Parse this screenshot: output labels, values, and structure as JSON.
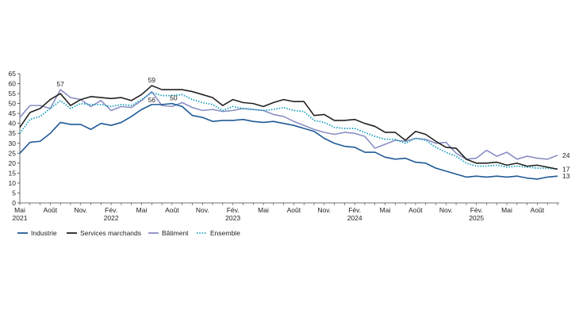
{
  "chart_data": {
    "type": "line",
    "title": "",
    "xlabel": "",
    "ylabel": "",
    "ylim": [
      0,
      65
    ],
    "yticks": [
      0,
      5,
      10,
      15,
      20,
      25,
      30,
      35,
      40,
      45,
      50,
      55,
      60,
      65
    ],
    "legend_position": "bottom-left",
    "x_start": "Mai 2021",
    "x_tick_labels": [
      {
        "index": 0,
        "label": "Mai",
        "year": "2021"
      },
      {
        "index": 3,
        "label": "Août",
        "year": ""
      },
      {
        "index": 6,
        "label": "Nov.",
        "year": ""
      },
      {
        "index": 9,
        "label": "Fév.",
        "year": "2022"
      },
      {
        "index": 12,
        "label": "Mai",
        "year": ""
      },
      {
        "index": 15,
        "label": "Août",
        "year": ""
      },
      {
        "index": 18,
        "label": "Nov.",
        "year": ""
      },
      {
        "index": 21,
        "label": "Fév.",
        "year": "2023"
      },
      {
        "index": 24,
        "label": "Mai",
        "year": ""
      },
      {
        "index": 27,
        "label": "Août",
        "year": ""
      },
      {
        "index": 30,
        "label": "Nov.",
        "year": ""
      },
      {
        "index": 33,
        "label": "Fév.",
        "year": "2024"
      },
      {
        "index": 36,
        "label": "Mai",
        "year": ""
      },
      {
        "index": 39,
        "label": "Août",
        "year": ""
      },
      {
        "index": 42,
        "label": "Nov.",
        "year": ""
      },
      {
        "index": 45,
        "label": "Fév.",
        "year": "2025"
      },
      {
        "index": 48,
        "label": "Mai",
        "year": ""
      },
      {
        "index": 51,
        "label": "Août",
        "year": ""
      }
    ],
    "series": [
      {
        "name": "Industrie",
        "color": "#1f5a96",
        "dash": "solid",
        "values": [
          25,
          30.5,
          31,
          35,
          40.5,
          39.5,
          39.5,
          37,
          40,
          39,
          40.5,
          43.5,
          47,
          49.5,
          49.5,
          50,
          48.5,
          44,
          43,
          41,
          41.5,
          41.5,
          42,
          41,
          40.5,
          41,
          40,
          39,
          37.5,
          36,
          32.5,
          30,
          28.5,
          28,
          25.5,
          25.5,
          23,
          22,
          22.5,
          20.5,
          20,
          17.5,
          16,
          14.5,
          13,
          13.5,
          13,
          13.5,
          13,
          13.5,
          12.5,
          12,
          13,
          13.5
        ]
      },
      {
        "name": "Services marchands",
        "color": "#222222",
        "dash": "solid",
        "values": [
          38,
          45.5,
          47.5,
          52,
          55,
          49,
          52,
          53.5,
          53,
          52.5,
          53,
          51.5,
          54.5,
          59,
          57,
          57,
          57,
          56,
          54.5,
          53,
          49,
          52,
          50.5,
          50,
          48.5,
          50.5,
          52,
          51,
          51,
          44,
          44.5,
          41.5,
          41.5,
          42,
          40,
          38.5,
          35.5,
          35.5,
          31.5,
          36,
          34.5,
          31,
          28,
          27.5,
          22,
          20,
          20,
          20.5,
          19,
          20,
          18.5,
          19,
          18,
          17
        ]
      },
      {
        "name": "Bâtiment",
        "color": "#8a8fc4",
        "dash": "solid",
        "values": [
          43,
          49,
          49,
          47.5,
          57,
          53,
          52,
          48.5,
          51.5,
          46.5,
          48.5,
          48,
          51.5,
          56,
          49,
          48.5,
          50.5,
          48,
          46.5,
          47,
          46,
          46.5,
          47.5,
          47,
          46.5,
          44.5,
          43.5,
          41,
          39,
          37,
          35.5,
          34.5,
          35.5,
          35,
          33.5,
          27.5,
          29.5,
          31.5,
          31,
          32.5,
          32,
          30,
          30.5,
          25,
          22,
          22.5,
          26.5,
          23.5,
          25.5,
          22,
          23.5,
          22.5,
          22,
          24
        ]
      },
      {
        "name": "Ensemble",
        "color": "#1a9fbf",
        "dash": "dotted",
        "values": [
          35,
          42,
          43.5,
          47.5,
          51.5,
          47.5,
          50,
          49.5,
          49.5,
          48.5,
          49.5,
          49,
          52,
          55.5,
          54,
          54,
          54.5,
          52,
          50.5,
          49.5,
          46.5,
          48.5,
          47.5,
          47,
          46.5,
          47,
          48,
          46.5,
          46,
          41.5,
          40.5,
          38,
          37.5,
          37.5,
          35.5,
          33.5,
          32,
          32,
          30,
          32.5,
          31.5,
          28,
          25.5,
          23.5,
          20,
          18.5,
          18.5,
          19,
          18,
          18.5,
          18,
          17.5,
          17.5,
          17
        ]
      }
    ],
    "annotations": [
      {
        "text": "57",
        "series": "Bâtiment",
        "index": 4
      },
      {
        "text": "59",
        "series": "Services marchands",
        "index": 13
      },
      {
        "text": "56",
        "series": "Ensemble",
        "index": 13
      },
      {
        "text": "50",
        "series": "Industrie",
        "index": 15
      },
      {
        "text": "24",
        "series": "Bâtiment",
        "index": 53
      },
      {
        "text": "17",
        "series": "Services marchands",
        "index": 53
      },
      {
        "text": "13",
        "series": "Industrie",
        "index": 53
      }
    ]
  }
}
